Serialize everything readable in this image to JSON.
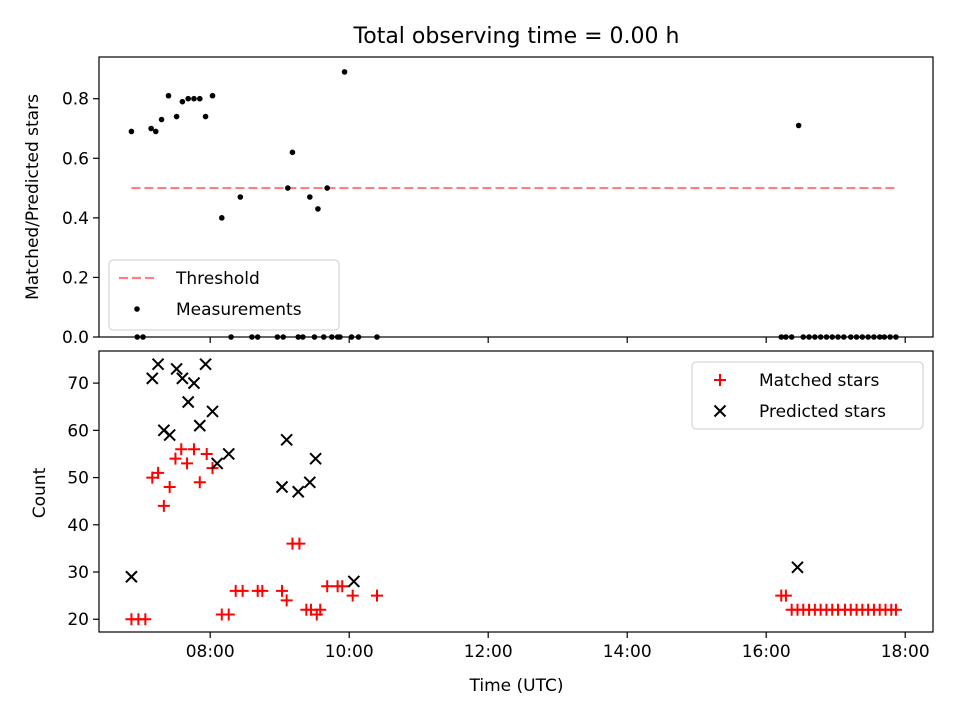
{
  "chart_data": [
    {
      "type": "scatter",
      "title": "Total observing time = 0.00 h",
      "xlabel": "",
      "ylabel": "Matched/Predicted stars",
      "xlim": [
        "06:24",
        "18:24"
      ],
      "ylim": [
        0,
        0.94
      ],
      "yticks": [
        0,
        0.2,
        0.4,
        0.6,
        0.8
      ],
      "ytick_labels": [
        "0.0",
        "0.2",
        "0.4",
        "0.6",
        "0.8"
      ],
      "legend": {
        "placement": "lower-left",
        "entries": [
          {
            "label": "Threshold",
            "color": "#ff7f7f",
            "style": "dashed-line"
          },
          {
            "label": "Measurements",
            "color": "#000000",
            "style": "dot"
          }
        ]
      },
      "threshold": {
        "name": "Threshold",
        "value": 0.5,
        "x_start": "06:52",
        "x_end": "17:52",
        "color": "#ff7f7f"
      },
      "series": [
        {
          "name": "Measurements",
          "color": "#000000",
          "x": [
            "06:52",
            "06:57",
            "07:02",
            "07:09",
            "07:13",
            "07:18",
            "07:24",
            "07:31",
            "07:36",
            "07:41",
            "07:46",
            "07:51",
            "07:56",
            "08:02",
            "08:10",
            "08:18",
            "08:26",
            "08:36",
            "08:41",
            "08:58",
            "09:03",
            "09:07",
            "09:11",
            "09:16",
            "09:20",
            "09:26",
            "09:30",
            "09:33",
            "09:38",
            "09:41",
            "09:45",
            "09:50",
            "09:52",
            "09:56",
            "10:02",
            "10:08",
            "10:24",
            "16:13",
            "16:17",
            "16:22",
            "16:28",
            "16:32",
            "16:37",
            "16:42",
            "16:47",
            "16:52",
            "16:57",
            "17:02",
            "17:07",
            "17:13",
            "17:18",
            "17:23",
            "17:28",
            "17:33",
            "17:38",
            "17:42",
            "17:47",
            "17:52"
          ],
          "y": [
            0.69,
            0,
            0,
            0.7,
            0.69,
            0.73,
            0.81,
            0.74,
            0.79,
            0.8,
            0.8,
            0.8,
            0.74,
            0.81,
            0.4,
            0,
            0.47,
            0,
            0,
            0,
            0,
            0.5,
            0.62,
            0,
            0,
            0.47,
            0,
            0.43,
            0,
            0.5,
            0,
            0,
            0,
            0.89,
            0,
            0,
            0,
            0,
            0,
            0,
            0.71,
            0,
            0,
            0,
            0,
            0,
            0,
            0,
            0,
            0,
            0,
            0,
            0,
            0,
            0,
            0,
            0,
            0
          ]
        }
      ]
    },
    {
      "type": "scatter",
      "title": "",
      "xlabel": "Time (UTC)",
      "ylabel": "Count",
      "xlim": [
        "06:24",
        "18:24"
      ],
      "ylim": [
        17.3,
        76.8
      ],
      "yticks": [
        20,
        30,
        40,
        50,
        60,
        70
      ],
      "ytick_labels": [
        "20",
        "30",
        "40",
        "50",
        "60",
        "70"
      ],
      "xticks": [
        "08:00",
        "10:00",
        "12:00",
        "14:00",
        "16:00",
        "18:00"
      ],
      "xtick_labels": [
        "08:00",
        "10:00",
        "12:00",
        "14:00",
        "16:00",
        "18:00"
      ],
      "legend": {
        "placement": "upper-right",
        "entries": [
          {
            "label": "Matched stars",
            "color": "#ff0000",
            "style": "plus"
          },
          {
            "label": "Predicted stars",
            "color": "#000000",
            "style": "x"
          }
        ]
      },
      "series": [
        {
          "name": "Matched stars",
          "color": "#ff0000",
          "marker": "plus",
          "x": [
            "06:52",
            "06:58",
            "07:04",
            "07:10",
            "07:15",
            "07:20",
            "07:25",
            "07:30",
            "07:35",
            "07:40",
            "07:46",
            "07:51",
            "07:57",
            "08:02",
            "08:10",
            "08:16",
            "08:22",
            "08:28",
            "08:41",
            "08:45",
            "09:02",
            "09:06",
            "09:11",
            "09:17",
            "09:23",
            "09:27",
            "09:32",
            "09:35",
            "09:41",
            "09:50",
            "09:54",
            "10:03",
            "10:24",
            "16:13",
            "16:17",
            "16:22",
            "16:27",
            "16:32",
            "16:37",
            "16:42",
            "16:47",
            "16:52",
            "16:57",
            "17:02",
            "17:08",
            "17:13",
            "17:18",
            "17:23",
            "17:28",
            "17:33",
            "17:38",
            "17:43",
            "17:48",
            "17:52"
          ],
          "y": [
            20,
            20,
            20,
            50,
            51,
            44,
            48,
            54,
            56,
            53,
            56,
            49,
            55,
            52,
            21,
            21,
            26,
            26,
            26,
            26,
            26,
            24,
            36,
            36,
            22,
            22,
            21,
            22,
            27,
            27,
            27,
            25,
            25,
            25,
            25,
            22,
            22,
            22,
            22,
            22,
            22,
            22,
            22,
            22,
            22,
            22,
            22,
            22,
            22,
            22,
            22,
            22,
            22,
            22
          ]
        },
        {
          "name": "Predicted stars",
          "color": "#000000",
          "marker": "x",
          "x": [
            "06:52",
            "07:10",
            "07:15",
            "07:20",
            "07:25",
            "07:31",
            "07:36",
            "07:41",
            "07:46",
            "07:51",
            "07:56",
            "08:02",
            "08:06",
            "08:16",
            "09:02",
            "09:06",
            "09:16",
            "09:26",
            "09:31",
            "10:04",
            "16:27"
          ],
          "y": [
            29,
            71,
            74,
            60,
            59,
            73,
            71,
            66,
            70,
            61,
            74,
            64,
            53,
            55,
            48,
            58,
            47,
            49,
            54,
            28,
            31
          ]
        }
      ]
    }
  ]
}
